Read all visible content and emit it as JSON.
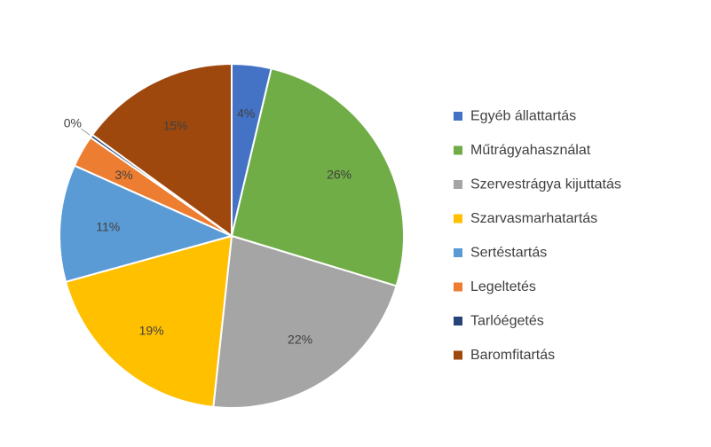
{
  "chart_data": {
    "type": "pie",
    "categories": [
      "Egyéb állattartás",
      "Műtrágyahasználat",
      "Szervestrágya kijuttatás",
      "Szarvasmarhatartás",
      "Sertéstartás",
      "Legeltetés",
      "Tarlóégetés",
      "Baromfitartás"
    ],
    "values": [
      3.7,
      26.0,
      22.0,
      19.0,
      11.0,
      3.0,
      0.3,
      15.0
    ],
    "labels": [
      "4%",
      "26%",
      "22%",
      "19%",
      "11%",
      "3%",
      "0%",
      "15%"
    ],
    "colors": [
      "#4472C4",
      "#70AD47",
      "#A5A5A5",
      "#FFC000",
      "#5B9BD5",
      "#ED7D31",
      "#264478",
      "#9E480E"
    ],
    "legend_position": "right",
    "start_angle_deg": 0,
    "direction": "clockwise"
  }
}
